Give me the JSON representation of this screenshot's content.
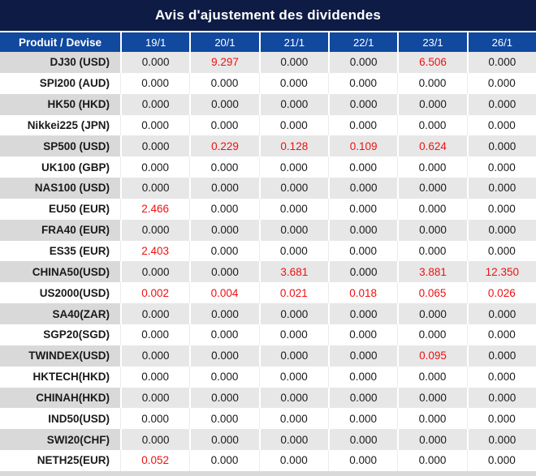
{
  "title": "Avis d'ajustement des dividendes",
  "colors": {
    "title_bar_bg": "#0d1b45",
    "header_bg": "#11499f",
    "header_text": "#ffffff",
    "separator": "#ffffff",
    "row_gray_bg": "#e7e7e7",
    "row_gray_label_bg": "#d9d9d9",
    "row_white_bg": "#ffffff",
    "white_row_divider": "#ececec",
    "text": "#1a1a1a",
    "red_value": "#ee1111",
    "bottom_strip": "#d9d9d9"
  },
  "table": {
    "zero_value": "0.000",
    "columns": [
      "Produit / Devise",
      "19/1",
      "20/1",
      "21/1",
      "22/1",
      "23/1",
      "26/1"
    ],
    "rows": [
      {
        "product": "DJ30 (USD)",
        "values": [
          "0.000",
          "9.297",
          "0.000",
          "0.000",
          "6.506",
          "0.000"
        ]
      },
      {
        "product": "SPI200 (AUD)",
        "values": [
          "0.000",
          "0.000",
          "0.000",
          "0.000",
          "0.000",
          "0.000"
        ]
      },
      {
        "product": "HK50 (HKD)",
        "values": [
          "0.000",
          "0.000",
          "0.000",
          "0.000",
          "0.000",
          "0.000"
        ]
      },
      {
        "product": "Nikkei225 (JPN)",
        "values": [
          "0.000",
          "0.000",
          "0.000",
          "0.000",
          "0.000",
          "0.000"
        ]
      },
      {
        "product": "SP500 (USD)",
        "values": [
          "0.000",
          "0.229",
          "0.128",
          "0.109",
          "0.624",
          "0.000"
        ]
      },
      {
        "product": "UK100 (GBP)",
        "values": [
          "0.000",
          "0.000",
          "0.000",
          "0.000",
          "0.000",
          "0.000"
        ]
      },
      {
        "product": "NAS100 (USD)",
        "values": [
          "0.000",
          "0.000",
          "0.000",
          "0.000",
          "0.000",
          "0.000"
        ]
      },
      {
        "product": "EU50 (EUR)",
        "values": [
          "2.466",
          "0.000",
          "0.000",
          "0.000",
          "0.000",
          "0.000"
        ]
      },
      {
        "product": "FRA40 (EUR)",
        "values": [
          "0.000",
          "0.000",
          "0.000",
          "0.000",
          "0.000",
          "0.000"
        ]
      },
      {
        "product": "ES35 (EUR)",
        "values": [
          "2.403",
          "0.000",
          "0.000",
          "0.000",
          "0.000",
          "0.000"
        ]
      },
      {
        "product": "CHINA50(USD)",
        "values": [
          "0.000",
          "0.000",
          "3.681",
          "0.000",
          "3.881",
          "12.350"
        ]
      },
      {
        "product": "US2000(USD)",
        "values": [
          "0.002",
          "0.004",
          "0.021",
          "0.018",
          "0.065",
          "0.026"
        ]
      },
      {
        "product": "SA40(ZAR)",
        "values": [
          "0.000",
          "0.000",
          "0.000",
          "0.000",
          "0.000",
          "0.000"
        ]
      },
      {
        "product": "SGP20(SGD)",
        "values": [
          "0.000",
          "0.000",
          "0.000",
          "0.000",
          "0.000",
          "0.000"
        ]
      },
      {
        "product": "TWINDEX(USD)",
        "values": [
          "0.000",
          "0.000",
          "0.000",
          "0.000",
          "0.095",
          "0.000"
        ]
      },
      {
        "product": "HKTECH(HKD)",
        "values": [
          "0.000",
          "0.000",
          "0.000",
          "0.000",
          "0.000",
          "0.000"
        ]
      },
      {
        "product": "CHINAH(HKD)",
        "values": [
          "0.000",
          "0.000",
          "0.000",
          "0.000",
          "0.000",
          "0.000"
        ]
      },
      {
        "product": "IND50(USD)",
        "values": [
          "0.000",
          "0.000",
          "0.000",
          "0.000",
          "0.000",
          "0.000"
        ]
      },
      {
        "product": "SWI20(CHF)",
        "values": [
          "0.000",
          "0.000",
          "0.000",
          "0.000",
          "0.000",
          "0.000"
        ]
      },
      {
        "product": "NETH25(EUR)",
        "values": [
          "0.052",
          "0.000",
          "0.000",
          "0.000",
          "0.000",
          "0.000"
        ]
      }
    ]
  }
}
